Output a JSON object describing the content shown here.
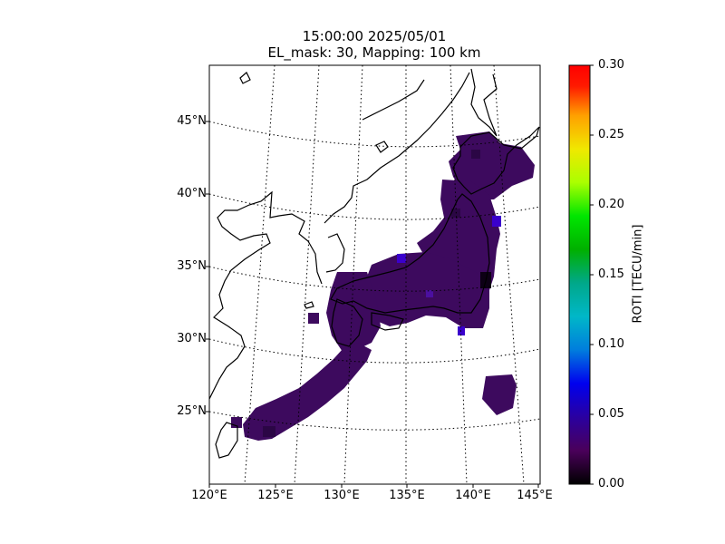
{
  "title": {
    "line1": "15:00:00 2025/05/01",
    "line2": "EL_mask: 30, Mapping: 100 km"
  },
  "map": {
    "lon_ticks": [
      "120°E",
      "125°E",
      "130°E",
      "135°E",
      "140°E",
      "145°E"
    ],
    "lat_ticks": [
      "45°N",
      "40°N",
      "35°N",
      "30°N",
      "25°N"
    ],
    "lon_range": [
      120,
      145
    ],
    "lat_range": [
      20,
      49
    ],
    "gridlines": "dotted",
    "coastline_color": "#000000"
  },
  "colorbar": {
    "label": "ROTI [TECU/min]",
    "ticks": [
      "0.30",
      "0.25",
      "0.20",
      "0.15",
      "0.10",
      "0.05",
      "0.00"
    ],
    "range": [
      0,
      0.3
    ],
    "colormap": "nipy_spectral"
  },
  "roti": {
    "dominant_color": "#3d0a5e",
    "level_typical": 0.02,
    "level_max": 0.06
  }
}
